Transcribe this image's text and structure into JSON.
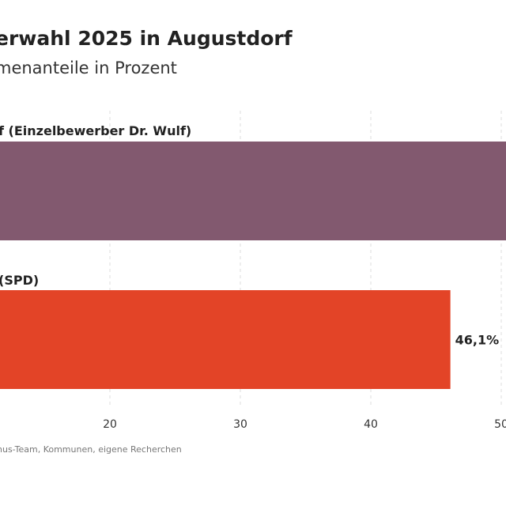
{
  "header": {
    "title": "erwahl 2025 in Augustdorf",
    "subtitle": "menanteile in Prozent"
  },
  "footer": {
    "source": "nus-Team, Kommunen, eigene Recherchen"
  },
  "chart_data": {
    "type": "bar",
    "orientation": "horizontal",
    "categories": [
      "f (Einzelbewerber Dr. Wulf)",
      "(SPD)"
    ],
    "values": [
      53.9,
      46.1
    ],
    "value_labels": [
      "",
      "46,1%"
    ],
    "colors": [
      "#82596f",
      "#e34427"
    ],
    "x_ticks": [
      20,
      30,
      40,
      50
    ],
    "x_tick_labels": [
      "20",
      "30",
      "40",
      "50"
    ],
    "xlim": [
      8,
      52
    ],
    "grid": true,
    "grid_style": "dashed vertical"
  }
}
